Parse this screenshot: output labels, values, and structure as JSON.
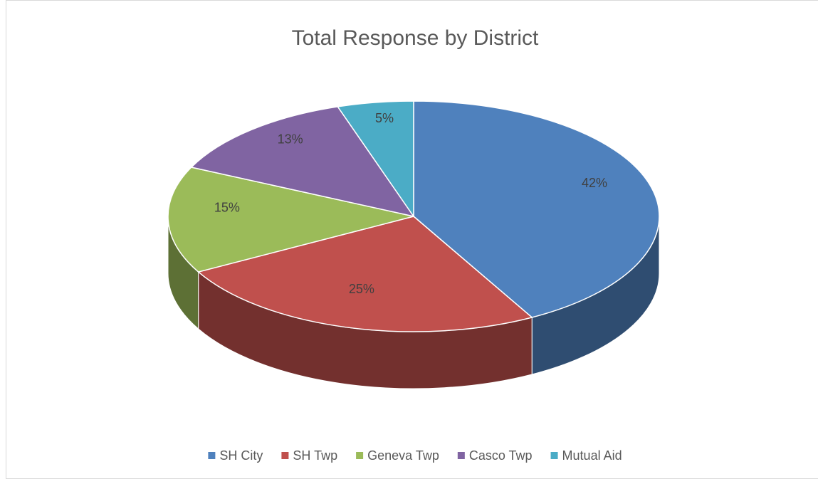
{
  "chart_data": {
    "type": "pie",
    "title": "Total Response by District",
    "categories": [
      "SH City",
      "SH Twp",
      "Geneva Twp",
      "Casco Twp",
      "Mutual Aid"
    ],
    "values": [
      42,
      25,
      15,
      13,
      5
    ],
    "value_labels": [
      "42%",
      "25%",
      "15%",
      "13%",
      "5%"
    ],
    "colors": [
      "#4f81bd",
      "#c0504d",
      "#9bbb59",
      "#8064a2",
      "#4bacc6"
    ],
    "legend": "bottom"
  }
}
